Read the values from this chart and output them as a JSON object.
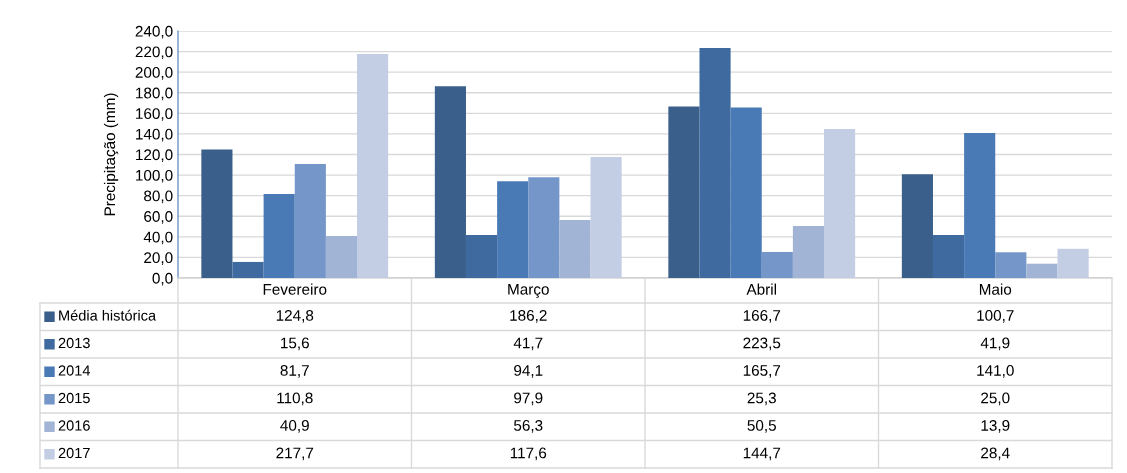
{
  "chart_data": {
    "type": "bar",
    "ylabel": "Precipitação (mm)",
    "categories": [
      "Fevereiro",
      "Março",
      "Abril",
      "Maio"
    ],
    "series": [
      {
        "name": "Média histórica",
        "color": "#3a5f8b",
        "values": [
          124.8,
          186.2,
          166.7,
          100.7
        ],
        "value_labels": [
          "124,8",
          "186,2",
          "166,7",
          "100,7"
        ]
      },
      {
        "name": "2013",
        "color": "#3e6aa0",
        "values": [
          15.6,
          41.7,
          223.5,
          41.9
        ],
        "value_labels": [
          "15,6",
          "41,7",
          "223,5",
          "41,9"
        ]
      },
      {
        "name": "2014",
        "color": "#4a7ab5",
        "values": [
          81.7,
          94.1,
          165.7,
          141.0
        ],
        "value_labels": [
          "81,7",
          "94,1",
          "165,7",
          "141,0"
        ]
      },
      {
        "name": "2015",
        "color": "#7596c8",
        "values": [
          110.8,
          97.9,
          25.3,
          25.0
        ],
        "value_labels": [
          "110,8",
          "97,9",
          "25,3",
          "25,0"
        ]
      },
      {
        "name": "2016",
        "color": "#a2b4d6",
        "values": [
          40.9,
          56.3,
          50.5,
          13.9
        ],
        "value_labels": [
          "40,9",
          "56,3",
          "50,5",
          "13,9"
        ]
      },
      {
        "name": "2017",
        "color": "#c3cde3",
        "values": [
          217.7,
          117.6,
          144.7,
          28.4
        ],
        "value_labels": [
          "217,7",
          "117,6",
          "144,7",
          "28,4"
        ]
      }
    ],
    "ylim": [
      0,
      240
    ],
    "yticks": [
      {
        "value": 0,
        "label": "0,0"
      },
      {
        "value": 20,
        "label": "20,0"
      },
      {
        "value": 40,
        "label": "40,0"
      },
      {
        "value": 60,
        "label": "60,0"
      },
      {
        "value": 80,
        "label": "80,0"
      },
      {
        "value": 100,
        "label": "100,0"
      },
      {
        "value": 120,
        "label": "120,0"
      },
      {
        "value": 140,
        "label": "140,0"
      },
      {
        "value": 160,
        "label": "160,0"
      },
      {
        "value": 180,
        "label": "180,0"
      },
      {
        "value": 200,
        "label": "200,0"
      },
      {
        "value": 220,
        "label": "220,0"
      },
      {
        "value": 240,
        "label": "240,0"
      }
    ],
    "grid": "y",
    "legend": "bottom"
  }
}
